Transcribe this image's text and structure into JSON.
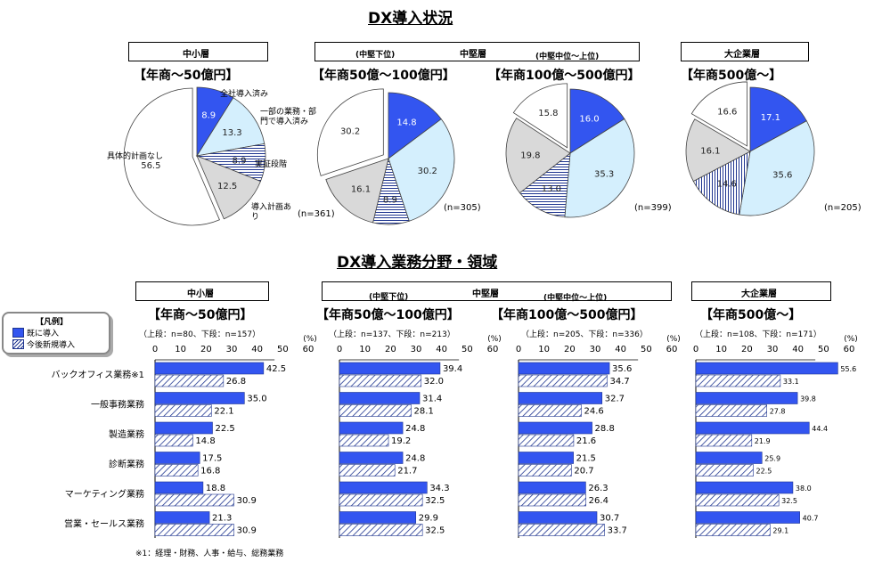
{
  "titles": {
    "pie_section": "DX導入状況",
    "bar_section": "DX導入業務分野・領域"
  },
  "groups": {
    "sme": "中小層",
    "mid": "中堅層",
    "large": "大企業層",
    "mid_low": "(中堅下位)",
    "mid_high": "(中堅中位～上位)"
  },
  "ranges": {
    "r1": "【年商～50億円】",
    "r2": "【年商50億～100億円】",
    "r3": "【年商100億～500億円】",
    "r4": "【年商500億～】"
  },
  "pie_labels": {
    "full": "全社導入済み",
    "partial": "一部の業務・部門で導入済み",
    "poc": "実証段階",
    "plan": "導入計画あり",
    "none": "具体的計画なし"
  },
  "pie_n": [
    "(n=361)",
    "(n=305)",
    "(n=399)",
    "(n=205)"
  ],
  "bar_n": [
    "（上段：n=80、下段：n=157）",
    "（上段：n=137、下段：n=213）",
    "（上段：n=205、下段：n=336）",
    "（上段：n=108、下段：n=171）"
  ],
  "legend": {
    "title": "【凡例】",
    "item1": "既に導入",
    "item2": "今後新規導入"
  },
  "footnote": "※1：経理・財務、人事・給与、総務業務",
  "pct_unit": "(%)",
  "colors": {
    "blue": "#3355f0",
    "lightblue": "#d4effd",
    "gray": "#d9d9d9",
    "white": "#ffffff",
    "navy": "#1f3590"
  },
  "chart_data": [
    {
      "type": "pie",
      "title": "【年商～50億円】",
      "categories": [
        "全社導入済み",
        "一部の業務・部門で導入済み",
        "実証段階",
        "導入計画あり",
        "具体的計画なし"
      ],
      "values": [
        8.9,
        13.3,
        8.9,
        12.5,
        56.5
      ]
    },
    {
      "type": "pie",
      "title": "【年商50億～100億円】",
      "categories": [
        "全社導入済み",
        "一部の業務・部門で導入済み",
        "実証段階",
        "導入計画あり",
        "具体的計画なし"
      ],
      "values": [
        14.8,
        30.2,
        8.9,
        16.1,
        30.2
      ]
    },
    {
      "type": "pie",
      "title": "【年商100億～500億円】",
      "categories": [
        "全社導入済み",
        "一部の業務・部門で導入済み",
        "実証段階",
        "導入計画あり",
        "具体的計画なし"
      ],
      "values": [
        16.0,
        35.3,
        13.0,
        19.8,
        15.8
      ]
    },
    {
      "type": "pie",
      "title": "【年商500億～】",
      "categories": [
        "全社導入済み",
        "一部の業務・部門で導入済み",
        "実証段階",
        "導入計画あり",
        "具体的計画なし"
      ],
      "values": [
        17.1,
        35.6,
        14.6,
        16.1,
        16.6
      ]
    },
    {
      "type": "bar",
      "title": "【年商～50億円】",
      "categories": [
        "バックオフィス業務※1",
        "一般事務業務",
        "製造業務",
        "診断業務",
        "マーケティング業務",
        "営業・セールス業務"
      ],
      "series": [
        {
          "name": "既に導入",
          "values": [
            42.5,
            35.0,
            22.5,
            17.5,
            18.8,
            21.3
          ]
        },
        {
          "name": "今後新規導入",
          "values": [
            26.8,
            22.1,
            14.8,
            16.8,
            30.9,
            30.9
          ]
        }
      ],
      "xlim": [
        0,
        60
      ]
    },
    {
      "type": "bar",
      "title": "【年商50億～100億円】",
      "categories": [
        "バックオフィス業務※1",
        "一般事務業務",
        "製造業務",
        "診断業務",
        "マーケティング業務",
        "営業・セールス業務"
      ],
      "series": [
        {
          "name": "既に導入",
          "values": [
            39.4,
            31.4,
            24.8,
            24.8,
            34.3,
            29.9
          ]
        },
        {
          "name": "今後新規導入",
          "values": [
            32.0,
            28.1,
            19.2,
            21.7,
            32.5,
            32.5
          ]
        }
      ],
      "xlim": [
        0,
        60
      ]
    },
    {
      "type": "bar",
      "title": "【年商100億～500億円】",
      "categories": [
        "バックオフィス業務※1",
        "一般事務業務",
        "製造業務",
        "診断業務",
        "マーケティング業務",
        "営業・セールス業務"
      ],
      "series": [
        {
          "name": "既に導入",
          "values": [
            35.6,
            32.7,
            28.8,
            21.5,
            26.3,
            30.7
          ]
        },
        {
          "name": "今後新規導入",
          "values": [
            34.7,
            24.6,
            21.6,
            20.7,
            26.4,
            33.7
          ]
        }
      ],
      "xlim": [
        0,
        60
      ]
    },
    {
      "type": "bar",
      "title": "【年商500億～】",
      "categories": [
        "バックオフィス業務※1",
        "一般事務業務",
        "製造業務",
        "診断業務",
        "マーケティング業務",
        "営業・セールス業務"
      ],
      "series": [
        {
          "name": "既に導入",
          "values": [
            55.6,
            39.8,
            44.4,
            25.9,
            38.0,
            40.7
          ]
        },
        {
          "name": "今後新規導入",
          "values": [
            33.1,
            27.8,
            21.9,
            22.5,
            32.5,
            29.1
          ]
        }
      ],
      "xlim": [
        0,
        60
      ]
    }
  ]
}
